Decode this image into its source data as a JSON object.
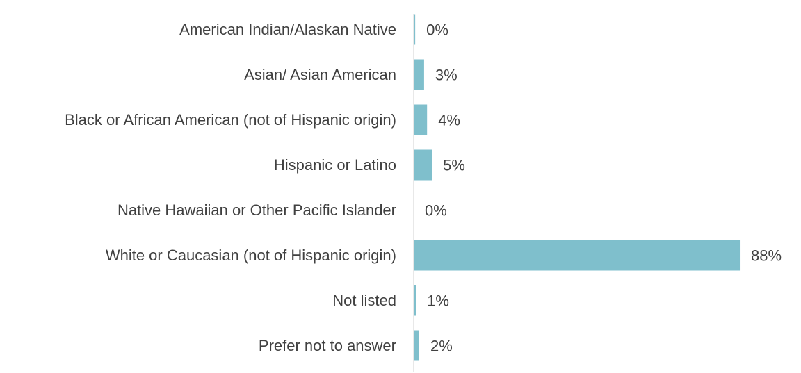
{
  "chart_data": {
    "type": "bar",
    "orientation": "horizontal",
    "categories": [
      "American Indian/Alaskan Native",
      "Asian/ Asian American",
      "Black or African American (not of Hispanic origin)",
      "Hispanic or Latino",
      "Native Hawaiian or Other Pacific Islander",
      "White or Caucasian (not of Hispanic origin)",
      "Not listed",
      "Prefer not to answer"
    ],
    "values": [
      0.4,
      2.8,
      3.6,
      4.9,
      0,
      88,
      0.6,
      1.5
    ],
    "value_labels": [
      "0%",
      "3%",
      "4%",
      "5%",
      "0%",
      "88%",
      "1%",
      "2%"
    ],
    "color": "#7fbfcc",
    "xlim": [
      0,
      100
    ]
  }
}
